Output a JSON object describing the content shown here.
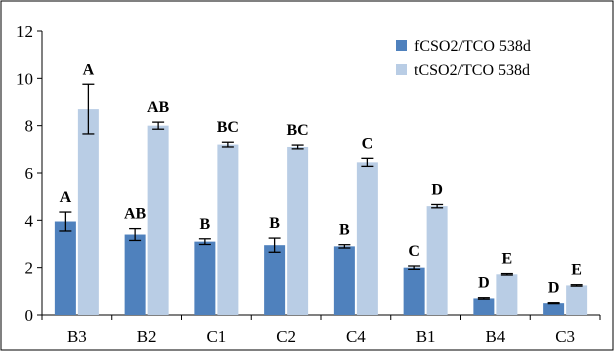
{
  "chart_data": {
    "type": "bar",
    "categories": [
      "B3",
      "B2",
      "C1",
      "C2",
      "C4",
      "B1",
      "B4",
      "C3"
    ],
    "ylim": [
      0,
      12
    ],
    "yticks": [
      0,
      2,
      4,
      6,
      8,
      10,
      12
    ],
    "grid": false,
    "legend_position": "top-right",
    "series": [
      {
        "name": "fCSO2/TCO 538d",
        "color": "#4f81bd",
        "values": [
          3.95,
          3.4,
          3.1,
          2.95,
          2.9,
          2.0,
          0.7,
          0.5
        ],
        "errors": [
          0.4,
          0.25,
          0.12,
          0.3,
          0.07,
          0.07,
          0.03,
          0.02
        ],
        "labels": [
          "A",
          "AB",
          "B",
          "B",
          "B",
          "C",
          "D",
          "D"
        ]
      },
      {
        "name": "tCSO2/TCO 538d",
        "color": "#b9cde5",
        "values": [
          8.7,
          8.0,
          7.2,
          7.1,
          6.45,
          4.6,
          1.72,
          1.25
        ],
        "errors": [
          1.05,
          0.15,
          0.1,
          0.08,
          0.17,
          0.07,
          0.03,
          0.03
        ],
        "labels": [
          "A",
          "AB",
          "BC",
          "BC",
          "C",
          "D",
          "E",
          "E"
        ]
      }
    ]
  }
}
